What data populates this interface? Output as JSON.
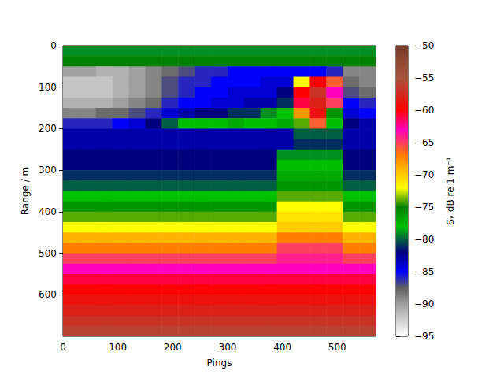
{
  "chart_data": {
    "type": "heatmap",
    "x_label": "Pings",
    "y_label": "Range / m",
    "xlim": [
      0,
      570
    ],
    "xticks": [
      0,
      100,
      200,
      300,
      400,
      500
    ],
    "ylim": [
      0,
      700
    ],
    "yticks": [
      0,
      100,
      200,
      300,
      400,
      500,
      600
    ],
    "x_edges": [
      0,
      30,
      60,
      90,
      120,
      150,
      180,
      210,
      240,
      270,
      300,
      330,
      360,
      390,
      420,
      450,
      480,
      510,
      540,
      570
    ],
    "y_edges": [
      0,
      25,
      50,
      75,
      100,
      125,
      150,
      175,
      200,
      225,
      250,
      275,
      300,
      325,
      350,
      375,
      400,
      425,
      450,
      475,
      500,
      525,
      550,
      575,
      600,
      625,
      650,
      675,
      700
    ],
    "cells": [
      [
        -79,
        -79,
        -79,
        -79,
        -79,
        -79,
        -79,
        -79,
        -79,
        -79,
        -79,
        -79,
        -79,
        -79,
        -79,
        -79,
        -79,
        -79,
        -79
      ],
      [
        -75,
        -75,
        -75,
        -75,
        -75,
        -75,
        -75,
        -75,
        -75,
        -75,
        -75,
        -75,
        -75,
        -75,
        -75,
        -75,
        -75,
        -75,
        -75
      ],
      [
        -90,
        -90,
        -91,
        -91,
        -90,
        -89,
        -88,
        -87,
        -86,
        -86,
        -85,
        -85,
        -85,
        -85,
        -85,
        -85,
        -86,
        -89,
        -89
      ],
      [
        -92,
        -92,
        -92,
        -91,
        -90,
        -89,
        -87,
        -86,
        -86,
        -85,
        -85,
        -85,
        -84,
        -84,
        -72,
        -60,
        -66,
        -88,
        -89
      ],
      [
        -92,
        -92,
        -92,
        -91,
        -90,
        -89,
        -87,
        -86,
        -85,
        -85,
        -84,
        -84,
        -84,
        -82,
        -60,
        -57,
        -63,
        -87,
        -88
      ],
      [
        -91,
        -91,
        -91,
        -90,
        -89,
        -88,
        -86,
        -85,
        -85,
        -84,
        -84,
        -83,
        -83,
        -81,
        -61,
        -58,
        -65,
        -85,
        -86
      ],
      [
        -89,
        -89,
        -88,
        -88,
        -87,
        -86,
        -84,
        -83,
        -82,
        -82,
        -81,
        -81,
        -79,
        -78,
        -68,
        -59,
        -76,
        -84,
        -85
      ],
      [
        -86,
        -86,
        -86,
        -85,
        -84,
        -82,
        -80,
        -78,
        -78,
        -78,
        -77,
        -78,
        -78,
        -77,
        -74,
        -66,
        -78,
        -82,
        -83
      ],
      [
        -83,
        -83,
        -83,
        -83,
        -83,
        -83,
        -83,
        -83,
        -83,
        -83,
        -83,
        -83,
        -83,
        -83,
        -80,
        -80,
        -80,
        -83,
        -83
      ],
      [
        -83,
        -83,
        -83,
        -83,
        -83,
        -83,
        -83,
        -83,
        -83,
        -83,
        -83,
        -83,
        -83,
        -83,
        -81,
        -81,
        -81,
        -83,
        -83
      ],
      [
        -82,
        -82,
        -82,
        -82,
        -82,
        -82,
        -82,
        -82,
        -82,
        -82,
        -82,
        -82,
        -82,
        -79,
        -79,
        -79,
        -79,
        -82,
        -82
      ],
      [
        -82,
        -82,
        -82,
        -82,
        -82,
        -82,
        -82,
        -82,
        -82,
        -82,
        -82,
        -82,
        -82,
        -78,
        -78,
        -78,
        -78,
        -82,
        -82
      ],
      [
        -81,
        -81,
        -81,
        -81,
        -81,
        -81,
        -81,
        -81,
        -81,
        -81,
        -81,
        -81,
        -81,
        -77,
        -77,
        -77,
        -77,
        -81,
        -81
      ],
      [
        -80,
        -80,
        -80,
        -80,
        -80,
        -80,
        -80,
        -80,
        -80,
        -80,
        -80,
        -80,
        -80,
        -76,
        -76,
        -76,
        -76,
        -80,
        -80
      ],
      [
        -78,
        -78,
        -78,
        -78,
        -78,
        -78,
        -78,
        -78,
        -78,
        -78,
        -78,
        -78,
        -78,
        -74,
        -74,
        -74,
        -74,
        -78,
        -78
      ],
      [
        -76,
        -76,
        -76,
        -76,
        -76,
        -76,
        -76,
        -76,
        -76,
        -76,
        -76,
        -76,
        -76,
        -72,
        -72,
        -72,
        -72,
        -76,
        -76
      ],
      [
        -74,
        -74,
        -74,
        -74,
        -74,
        -74,
        -74,
        -74,
        -74,
        -74,
        -74,
        -74,
        -74,
        -71,
        -71,
        -71,
        -71,
        -74,
        -74
      ],
      [
        -72,
        -72,
        -72,
        -72,
        -72,
        -72,
        -72,
        -72,
        -72,
        -72,
        -72,
        -72,
        -72,
        -70,
        -70,
        -70,
        -70,
        -72,
        -72
      ],
      [
        -69,
        -69,
        -69,
        -69,
        -69,
        -69,
        -69,
        -69,
        -69,
        -69,
        -69,
        -69,
        -69,
        -67,
        -67,
        -67,
        -67,
        -69,
        -69
      ],
      [
        -67,
        -67,
        -67,
        -67,
        -67,
        -67,
        -67,
        -67,
        -67,
        -67,
        -67,
        -67,
        -67,
        -65,
        -65,
        -65,
        -65,
        -67,
        -67
      ],
      [
        -65,
        -65,
        -65,
        -65,
        -65,
        -65,
        -65,
        -65,
        -65,
        -65,
        -65,
        -65,
        -65,
        -64,
        -64,
        -64,
        -64,
        -65,
        -65
      ],
      [
        -63,
        -63,
        -63,
        -63,
        -63,
        -63,
        -63,
        -63,
        -63,
        -63,
        -63,
        -63,
        -63,
        -63,
        -63,
        -63,
        -63,
        -63,
        -63
      ],
      [
        -61,
        -61,
        -61,
        -61,
        -61,
        -61,
        -61,
        -61,
        -61,
        -61,
        -61,
        -61,
        -61,
        -61,
        -61,
        -61,
        -61,
        -61,
        -61
      ],
      [
        -60,
        -60,
        -60,
        -60,
        -60,
        -60,
        -60,
        -60,
        -60,
        -60,
        -60,
        -60,
        -60,
        -60,
        -60,
        -60,
        -60,
        -60,
        -60
      ],
      [
        -59,
        -59,
        -59,
        -59,
        -59,
        -59,
        -59,
        -59,
        -59,
        -59,
        -59,
        -59,
        -59,
        -59,
        -59,
        -59,
        -59,
        -59,
        -59
      ],
      [
        -58,
        -58,
        -58,
        -58,
        -58,
        -58,
        -58,
        -58,
        -58,
        -58,
        -58,
        -58,
        -58,
        -58,
        -58,
        -58,
        -58,
        -58,
        -58
      ],
      [
        -57,
        -57,
        -57,
        -57,
        -57,
        -57,
        -57,
        -57,
        -57,
        -57,
        -57,
        -57,
        -57,
        -57,
        -57,
        -57,
        -57,
        -57,
        -57
      ],
      [
        -56,
        -56,
        -56,
        -56,
        -56,
        -56,
        -56,
        -56,
        -56,
        -56,
        -56,
        -56,
        -56,
        -56,
        -56,
        -56,
        -56,
        -56,
        -56
      ]
    ],
    "colorbar": {
      "label": "Sᵥ dB re 1 m⁻¹",
      "range": [
        -95,
        -50
      ],
      "ticks": [
        {
          "value": -50,
          "label": "−50"
        },
        {
          "value": -55,
          "label": "−55"
        },
        {
          "value": -60,
          "label": "−60"
        },
        {
          "value": -65,
          "label": "−65"
        },
        {
          "value": -70,
          "label": "−70"
        },
        {
          "value": -75,
          "label": "−75"
        },
        {
          "value": -80,
          "label": "−80"
        },
        {
          "value": -85,
          "label": "−85"
        },
        {
          "value": -90,
          "label": "−90"
        },
        {
          "value": -95,
          "label": "−95"
        }
      ]
    }
  }
}
